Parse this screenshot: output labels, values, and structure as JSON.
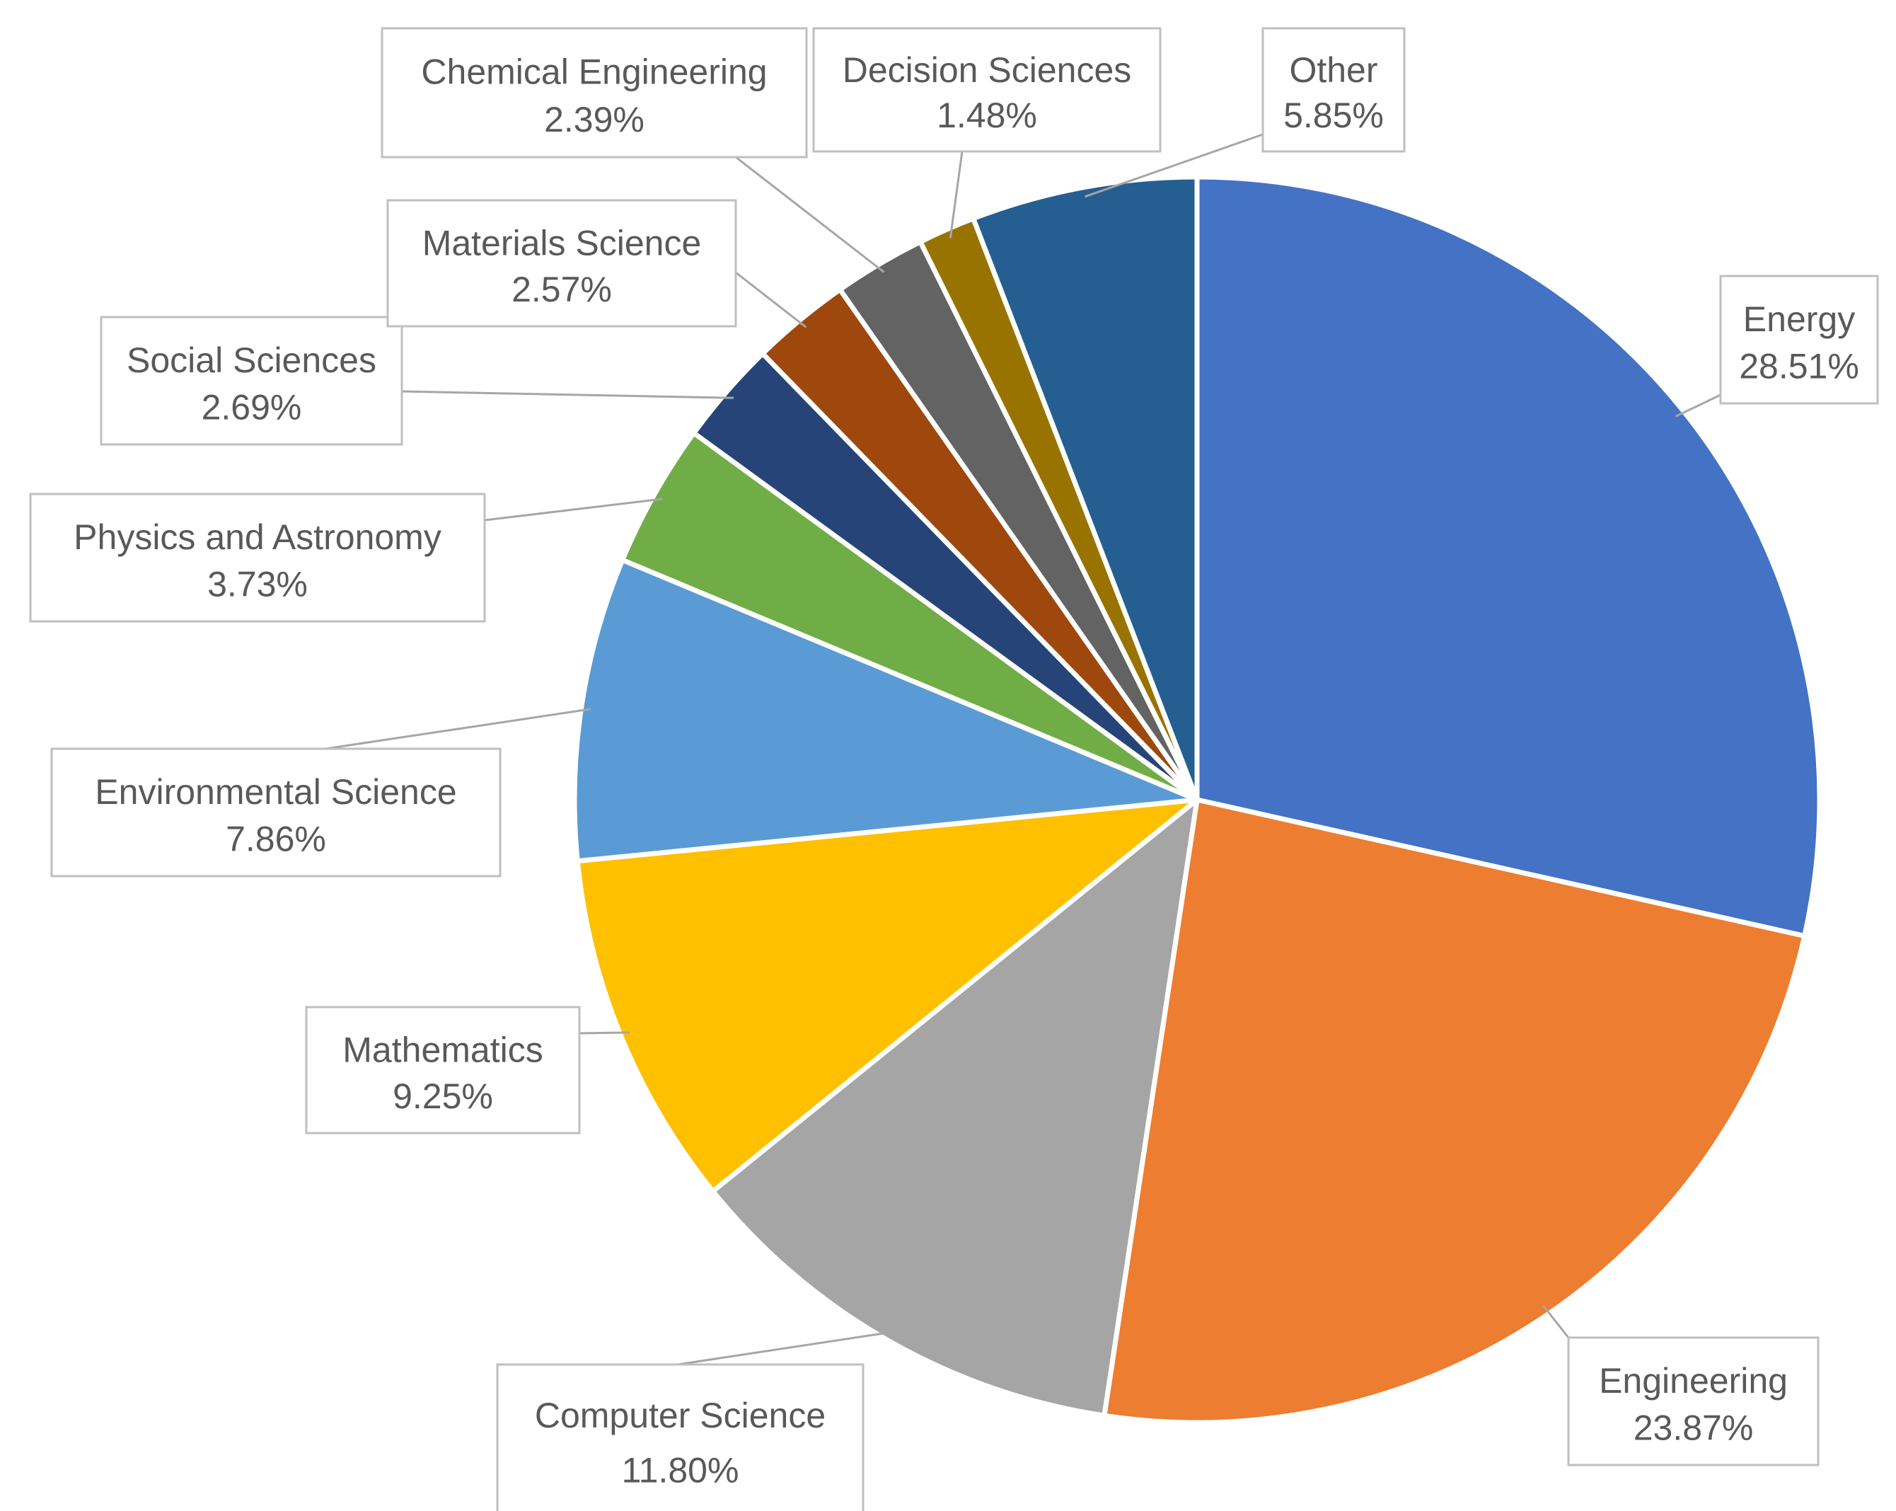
{
  "chart_data": {
    "type": "pie",
    "title": "",
    "start_angle_deg": 0,
    "direction": "clockwise",
    "slices": [
      {
        "label": "Energy",
        "value": 28.51,
        "value_label": "28.51%",
        "color": "#4472c4"
      },
      {
        "label": "Engineering",
        "value": 23.87,
        "value_label": "23.87%",
        "color": "#ed7d31"
      },
      {
        "label": "Computer Science",
        "value": 11.8,
        "value_label": "11.80%",
        "color": "#a5a5a5"
      },
      {
        "label": "Mathematics",
        "value": 9.25,
        "value_label": "9.25%",
        "color": "#ffc000"
      },
      {
        "label": "Environmental Science",
        "value": 7.86,
        "value_label": "7.86%",
        "color": "#5b9bd5"
      },
      {
        "label": "Physics and Astronomy",
        "value": 3.73,
        "value_label": "3.73%",
        "color": "#70ad47"
      },
      {
        "label": "Social Sciences",
        "value": 2.69,
        "value_label": "2.69%",
        "color": "#264478"
      },
      {
        "label": "Materials Science",
        "value": 2.57,
        "value_label": "2.57%",
        "color": "#9e480e"
      },
      {
        "label": "Chemical Engineering",
        "value": 2.39,
        "value_label": "2.39%",
        "color": "#636363"
      },
      {
        "label": "Decision Sciences",
        "value": 1.48,
        "value_label": "1.48%",
        "color": "#997300"
      },
      {
        "label": "Other",
        "value": 5.85,
        "value_label": "5.85%",
        "color": "#255e91"
      }
    ]
  }
}
